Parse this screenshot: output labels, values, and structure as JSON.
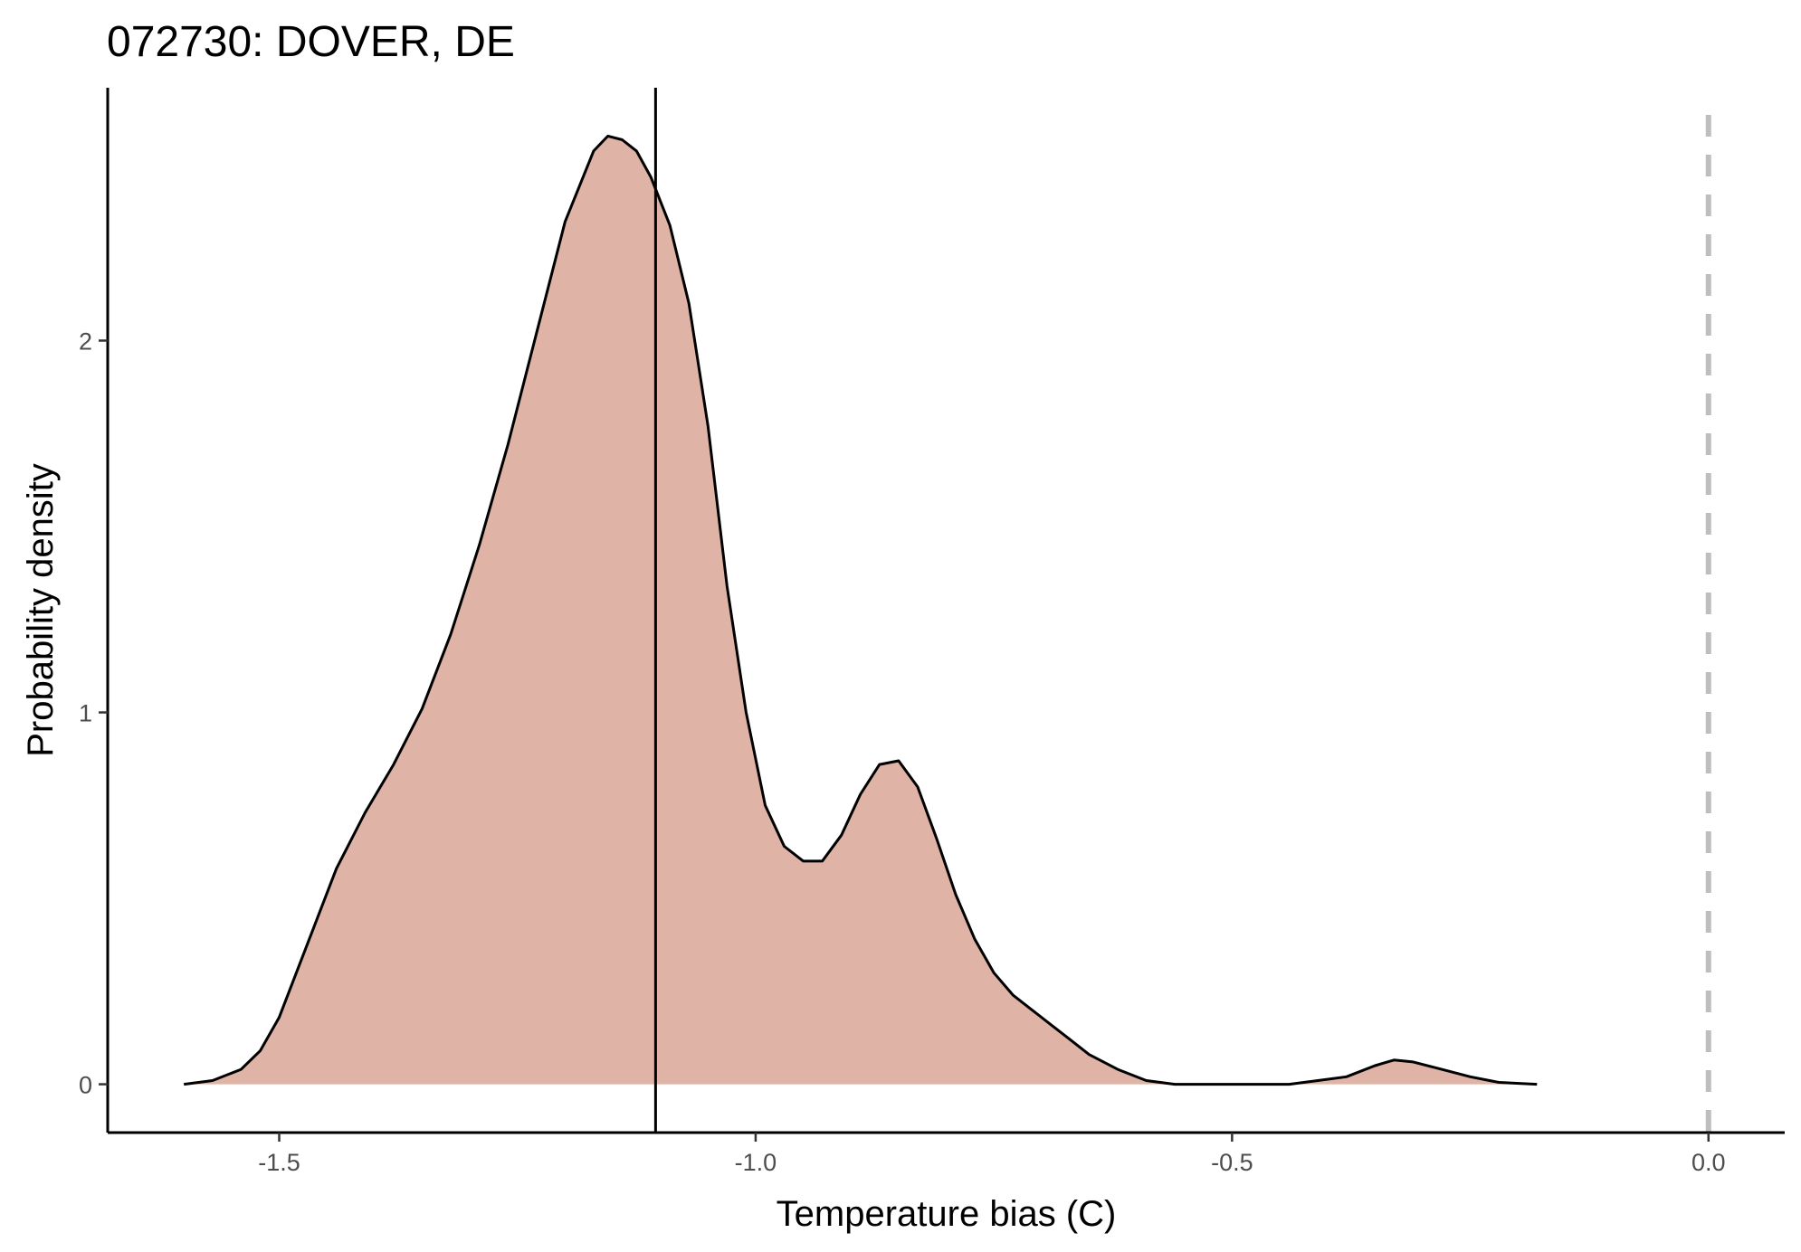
{
  "chart_data": {
    "type": "area",
    "title": "072730: DOVER, DE",
    "xlabel": "Temperature bias (C)",
    "ylabel": "Probability density",
    "xlim": [
      -1.68,
      0.08
    ],
    "ylim": [
      -0.13,
      2.68
    ],
    "x_ticks": [
      -1.5,
      -1.0,
      -0.5,
      0.0
    ],
    "x_tick_labels": [
      "-1.5",
      "-1.0",
      "-0.5",
      "0.0"
    ],
    "y_ticks": [
      0,
      1,
      2
    ],
    "y_tick_labels": [
      "0",
      "1",
      "2"
    ],
    "grid": false,
    "legend": "none",
    "fill_color": "#dfb4a6",
    "line_color": "#000000",
    "series": [
      {
        "x": [
          -1.6,
          -1.57,
          -1.54,
          -1.52,
          -1.5,
          -1.47,
          -1.44,
          -1.41,
          -1.38,
          -1.35,
          -1.32,
          -1.29,
          -1.26,
          -1.23,
          -1.2,
          -1.17,
          -1.155,
          -1.14,
          -1.125,
          -1.11,
          -1.09,
          -1.07,
          -1.05,
          -1.03,
          -1.01,
          -0.99,
          -0.97,
          -0.95,
          -0.93,
          -0.91,
          -0.89,
          -0.87,
          -0.85,
          -0.83,
          -0.81,
          -0.79,
          -0.77,
          -0.75,
          -0.73,
          -0.71,
          -0.69,
          -0.67,
          -0.65,
          -0.62,
          -0.59,
          -0.56,
          -0.53,
          -0.5,
          -0.47,
          -0.44,
          -0.41,
          -0.38,
          -0.35,
          -0.33,
          -0.31,
          -0.28,
          -0.25,
          -0.22,
          -0.18
        ],
        "y": [
          0.0,
          0.01,
          0.04,
          0.09,
          0.18,
          0.38,
          0.58,
          0.73,
          0.86,
          1.01,
          1.21,
          1.45,
          1.72,
          2.02,
          2.32,
          2.51,
          2.55,
          2.54,
          2.51,
          2.44,
          2.31,
          2.1,
          1.77,
          1.34,
          1.0,
          0.75,
          0.64,
          0.6,
          0.6,
          0.67,
          0.78,
          0.86,
          0.87,
          0.8,
          0.66,
          0.51,
          0.39,
          0.3,
          0.24,
          0.2,
          0.16,
          0.12,
          0.08,
          0.04,
          0.01,
          0.0,
          0.0,
          0.0,
          0.0,
          0.0,
          0.01,
          0.02,
          0.05,
          0.065,
          0.06,
          0.04,
          0.02,
          0.005,
          0.0
        ]
      }
    ],
    "reference_lines": [
      {
        "axis": "x",
        "value": -1.105,
        "style": "solid",
        "color": "#000000"
      },
      {
        "axis": "x",
        "value": 0.0,
        "style": "dashed",
        "color": "#bebebe"
      }
    ]
  }
}
